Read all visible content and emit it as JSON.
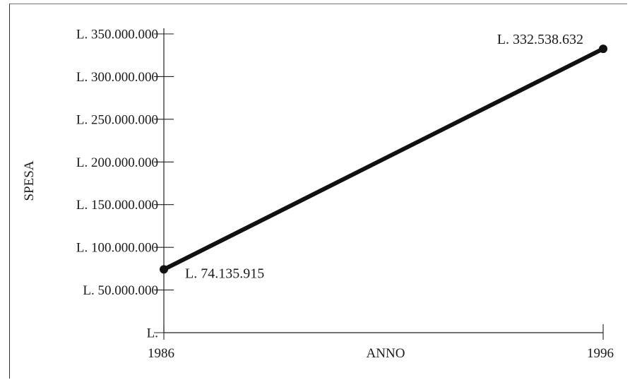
{
  "chart_data": {
    "type": "line",
    "xlabel": "ANNO",
    "ylabel": "SPESA",
    "x": [
      1986,
      1996
    ],
    "xlim": [
      1986,
      1996
    ],
    "ylim": [
      0,
      350000000
    ],
    "x_ticks": [
      "1986",
      "1996"
    ],
    "y_ticks": [
      {
        "value": 0,
        "label": "L."
      },
      {
        "value": 50000000,
        "label": "L.  50.000.000"
      },
      {
        "value": 100000000,
        "label": "L. 100.000.000"
      },
      {
        "value": 150000000,
        "label": "L. 150.000.000"
      },
      {
        "value": 200000000,
        "label": "L. 200.000.000"
      },
      {
        "value": 250000000,
        "label": "L. 250.000.000"
      },
      {
        "value": 300000000,
        "label": "L. 300.000.000"
      },
      {
        "value": 350000000,
        "label": "L. 350.000.000"
      }
    ],
    "series": [
      {
        "values": [
          74135915,
          332538632
        ],
        "labels": [
          "L. 74.135.915",
          "L. 332.538.632"
        ],
        "color": "#111111"
      }
    ],
    "grid": false,
    "legend": "none"
  }
}
